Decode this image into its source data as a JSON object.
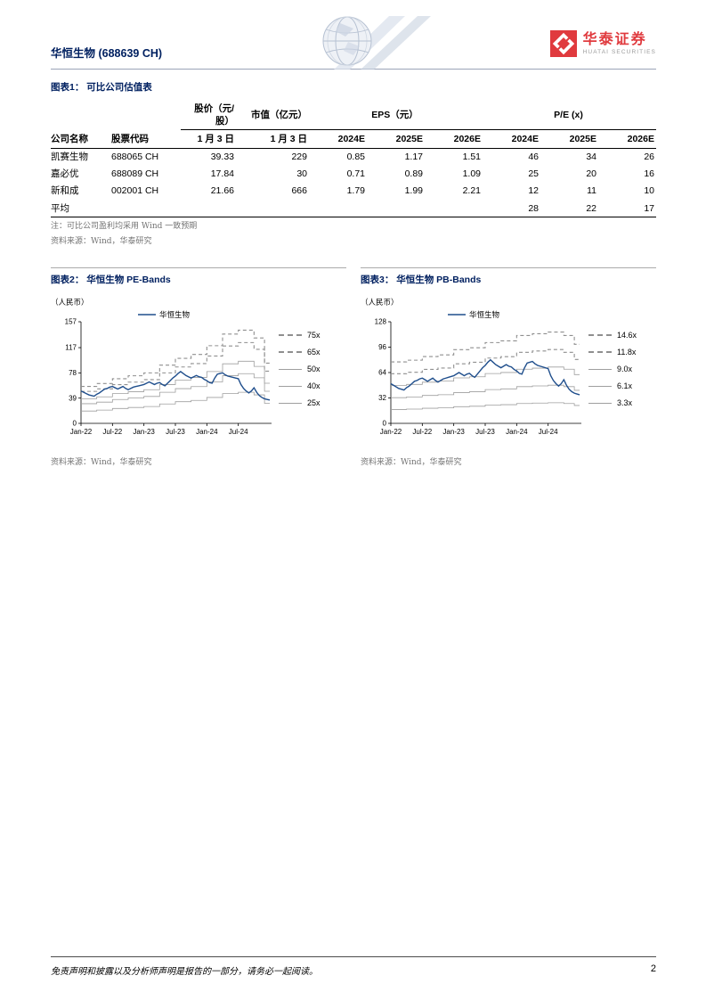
{
  "colors": {
    "accent_navy": "#002060",
    "brand_red": "#e03a3e",
    "line_blue": "#1f4e8c",
    "band_gray": "#9a9a9a"
  },
  "header": {
    "company_title": "华恒生物 (688639 CH)",
    "brand": "华泰证券",
    "brand_en": "HUATAI SECURITIES"
  },
  "table_section": {
    "title": "图表1： 可比公司估值表",
    "group_headers": {
      "price": "股价（元/股）",
      "mktcap": "市值（亿元）",
      "eps": "EPS（元）",
      "pe": "P/E (x)"
    },
    "columns": {
      "company": "公司名称",
      "ticker": "股票代码",
      "price_date": "1 月 3 日",
      "mktcap_date": "1 月 3 日",
      "years": [
        "2024E",
        "2025E",
        "2026E"
      ]
    },
    "rows": [
      {
        "company": "凯赛生物",
        "ticker": "688065 CH",
        "price": "39.33",
        "mktcap": "229",
        "eps": [
          "0.85",
          "1.17",
          "1.51"
        ],
        "pe": [
          "46",
          "34",
          "26"
        ]
      },
      {
        "company": "嘉必优",
        "ticker": "688089 CH",
        "price": "17.84",
        "mktcap": "30",
        "eps": [
          "0.71",
          "0.89",
          "1.09"
        ],
        "pe": [
          "25",
          "20",
          "16"
        ]
      },
      {
        "company": "新和成",
        "ticker": "002001 CH",
        "price": "21.66",
        "mktcap": "666",
        "eps": [
          "1.79",
          "1.99",
          "2.21"
        ],
        "pe": [
          "12",
          "11",
          "10"
        ]
      },
      {
        "company": "平均",
        "ticker": "",
        "price": "",
        "mktcap": "",
        "eps": [
          "",
          "",
          ""
        ],
        "pe": [
          "28",
          "22",
          "17"
        ]
      }
    ],
    "note": "注：可比公司盈利均采用 Wind 一致预期",
    "source": "资料来源：Wind，华泰研究"
  },
  "chart_data": [
    {
      "type": "line",
      "fig_title": "图表2： 华恒生物 PE-Bands",
      "unit_label": "（人民币）",
      "series_label": "华恒生物",
      "source": "资料来源：Wind，华泰研究",
      "ylim": [
        0,
        157
      ],
      "yticks": [
        0,
        39,
        78,
        117,
        157
      ],
      "x_range_months": 36,
      "xticks": [
        {
          "m": 0,
          "label": "Jan-22"
        },
        {
          "m": 6,
          "label": "Jul-22"
        },
        {
          "m": 12,
          "label": "Jan-23"
        },
        {
          "m": 18,
          "label": "Jul-23"
        },
        {
          "m": 24,
          "label": "Jan-24"
        },
        {
          "m": 30,
          "label": "Jul-24"
        }
      ],
      "bands": [
        {
          "label": "75x",
          "mult": 75,
          "style": "dashed"
        },
        {
          "label": "65x",
          "mult": 65,
          "style": "dashed"
        },
        {
          "label": "50x",
          "mult": 50,
          "style": "solid"
        },
        {
          "label": "40x",
          "mult": 40,
          "style": "solid"
        },
        {
          "label": "25x",
          "mult": 25,
          "style": "solid"
        }
      ],
      "band_base_monthly": [
        0.76,
        0.76,
        0.76,
        0.82,
        0.82,
        0.82,
        0.92,
        0.92,
        0.92,
        0.98,
        0.98,
        0.98,
        1.04,
        1.04,
        1.04,
        1.2,
        1.2,
        1.2,
        1.34,
        1.34,
        1.34,
        1.42,
        1.42,
        1.42,
        1.6,
        1.6,
        1.6,
        1.84,
        1.84,
        1.84,
        1.92,
        1.92,
        1.92,
        1.76,
        1.76,
        1.24,
        1.24
      ],
      "price_step_months": 0.5,
      "price": [
        50,
        48,
        46,
        44,
        43,
        42,
        45,
        47,
        50,
        53,
        54,
        56,
        57,
        55,
        53,
        55,
        57,
        54,
        52,
        54,
        56,
        57,
        58,
        59,
        60,
        62,
        64,
        62,
        60,
        62,
        63,
        60,
        58,
        62,
        66,
        70,
        73,
        77,
        80,
        77,
        74,
        72,
        70,
        72,
        74,
        72,
        71,
        68,
        66,
        63,
        62,
        70,
        76,
        77,
        78,
        75,
        73,
        72,
        71,
        70,
        69,
        60,
        54,
        50,
        47,
        50,
        55,
        48,
        43,
        40,
        38,
        37,
        36
      ]
    },
    {
      "type": "line",
      "fig_title": "图表3： 华恒生物 PB-Bands",
      "unit_label": "（人民币）",
      "series_label": "华恒生物",
      "source": "资料来源：Wind，华泰研究",
      "ylim": [
        0,
        128
      ],
      "yticks": [
        0,
        32,
        64,
        96,
        128
      ],
      "x_range_months": 36,
      "xticks": [
        {
          "m": 0,
          "label": "Jan-22"
        },
        {
          "m": 6,
          "label": "Jul-22"
        },
        {
          "m": 12,
          "label": "Jan-23"
        },
        {
          "m": 18,
          "label": "Jul-23"
        },
        {
          "m": 24,
          "label": "Jan-24"
        },
        {
          "m": 30,
          "label": "Jul-24"
        }
      ],
      "bands": [
        {
          "label": "14.6x",
          "mult": 14.6,
          "style": "dashed"
        },
        {
          "label": "11.8x",
          "mult": 11.8,
          "style": "dashed"
        },
        {
          "label": "9.0x",
          "mult": 9.0,
          "style": "solid"
        },
        {
          "label": "6.1x",
          "mult": 6.1,
          "style": "solid"
        },
        {
          "label": "3.3x",
          "mult": 3.3,
          "style": "solid"
        }
      ],
      "band_base_monthly": [
        5.3,
        5.3,
        5.3,
        5.45,
        5.45,
        5.45,
        5.76,
        5.76,
        5.76,
        5.91,
        5.91,
        5.91,
        6.36,
        6.36,
        6.36,
        6.52,
        6.52,
        6.52,
        6.97,
        6.97,
        6.97,
        7.12,
        7.12,
        7.12,
        7.58,
        7.58,
        7.58,
        7.73,
        7.73,
        7.73,
        7.88,
        7.88,
        7.88,
        7.58,
        7.58,
        6.82,
        6.82
      ],
      "price_step_months": 0.5,
      "price": [
        50,
        48,
        46,
        44,
        43,
        42,
        45,
        47,
        50,
        53,
        54,
        56,
        57,
        55,
        53,
        55,
        57,
        54,
        52,
        54,
        56,
        57,
        58,
        59,
        60,
        62,
        64,
        62,
        60,
        62,
        63,
        60,
        58,
        62,
        66,
        70,
        73,
        77,
        80,
        77,
        74,
        72,
        70,
        72,
        74,
        72,
        71,
        68,
        66,
        63,
        62,
        70,
        76,
        77,
        78,
        75,
        73,
        72,
        71,
        70,
        69,
        60,
        54,
        50,
        47,
        50,
        55,
        48,
        43,
        40,
        38,
        37,
        36
      ]
    }
  ],
  "footer": {
    "disclaimer": "免责声明和披露以及分析师声明是报告的一部分，请务必一起阅读。",
    "page_number": "2"
  }
}
